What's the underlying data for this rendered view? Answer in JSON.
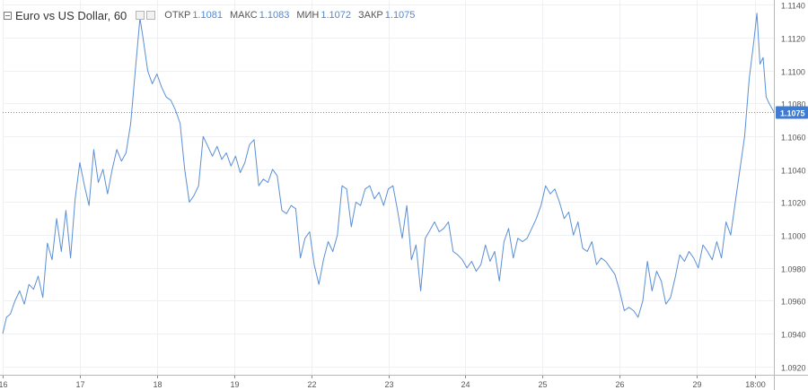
{
  "legend": {
    "title": "Euro vs US Dollar, 60",
    "open_label": "ОТКР",
    "open_value": "1.1081",
    "high_label": "МАКС",
    "high_value": "1.1083",
    "low_label": "МИН",
    "low_value": "1.1072",
    "close_label": "ЗАКР",
    "close_value": "1.1075"
  },
  "colors": {
    "line": "#5b8fd6",
    "last_badge": "#3f7bd1",
    "grid": "#eef0f3",
    "axis_text": "#555555"
  },
  "chart_data": {
    "type": "line",
    "title": "Euro vs US Dollar, 60",
    "xlabel": "",
    "ylabel": "",
    "ylim": [
      1.0915,
      1.1143
    ],
    "xlim": [
      0,
      100
    ],
    "grid": true,
    "y_ticks": [
      "1.0920",
      "1.0940",
      "1.0960",
      "1.0980",
      "1.1000",
      "1.1020",
      "1.1040",
      "1.1060",
      "1.1080",
      "1.1100",
      "1.1120",
      "1.1140"
    ],
    "x_ticks": [
      {
        "pos": 0,
        "label": "16"
      },
      {
        "pos": 10,
        "label": "17"
      },
      {
        "pos": 20,
        "label": "18"
      },
      {
        "pos": 30,
        "label": "19"
      },
      {
        "pos": 40,
        "label": "22"
      },
      {
        "pos": 50,
        "label": "23"
      },
      {
        "pos": 60,
        "label": "24"
      },
      {
        "pos": 70,
        "label": "25"
      },
      {
        "pos": 80,
        "label": "26"
      },
      {
        "pos": 90,
        "label": "29"
      },
      {
        "pos": 97.5,
        "label": "18:00"
      }
    ],
    "last_value": 1.1075,
    "last_label": "1.1075",
    "series": [
      {
        "x": [
          0,
          0.5,
          1,
          1.6,
          2.2,
          2.8,
          3.4,
          4.0,
          4.6,
          5.2,
          5.8,
          6.4,
          7.0,
          7.6,
          8.2,
          8.8,
          9.4,
          10.0,
          10.6,
          11.2,
          11.8,
          12.4,
          13.0,
          13.6,
          14.2,
          14.8,
          15.4,
          16.0,
          16.6,
          17.2,
          17.8,
          18.2,
          18.8,
          19.4,
          20.0,
          20.6,
          21.2,
          21.8,
          22.4,
          23.0,
          23.6,
          24.2,
          24.8,
          25.4,
          26.0,
          26.6,
          27.2,
          27.8,
          28.4,
          29.0,
          29.6,
          30.2,
          30.8,
          31.4,
          32.0,
          32.6,
          33.2,
          33.8,
          34.4,
          35.0,
          35.6,
          36.2,
          36.8,
          37.4,
          38.0,
          38.6,
          39.2,
          39.8,
          40.4,
          41.0,
          41.6,
          42.2,
          42.8,
          43.4,
          44.0,
          44.6,
          45.2,
          45.8,
          46.4,
          47.0,
          47.6,
          48.2,
          48.8,
          49.4,
          50.0,
          50.6,
          51.2,
          51.8,
          52.4,
          53.0,
          53.6,
          54.2,
          54.8,
          55.4,
          56.0,
          56.6,
          57.2,
          57.8,
          58.4,
          59.0,
          59.6,
          60.2,
          60.8,
          61.4,
          62.0,
          62.6,
          63.2,
          63.8,
          64.4,
          65.0,
          65.6,
          66.2,
          66.8,
          67.4,
          68.0,
          68.6,
          69.2,
          69.8,
          70.4,
          71.0,
          71.6,
          72.2,
          72.8,
          73.4,
          74.0,
          74.6,
          75.2,
          75.8,
          76.4,
          77.0,
          77.6,
          78.2,
          78.8,
          79.4,
          80.0,
          80.6,
          81.2,
          81.8,
          82.4,
          83.0,
          83.6,
          84.2,
          84.8,
          85.4,
          86.0,
          86.6,
          87.2,
          87.8,
          88.4,
          89.0,
          89.6,
          90.2,
          90.8,
          91.4,
          92.0,
          92.6,
          93.2,
          93.8,
          94.4,
          95.0,
          95.6,
          96.2,
          96.8,
          97.4,
          97.8,
          98.2,
          98.6,
          99.0,
          99.4,
          100.0
        ],
        "y": [
          1.094,
          1.095,
          1.0952,
          1.096,
          1.0966,
          1.0958,
          1.097,
          1.0967,
          1.0975,
          1.0962,
          1.0995,
          1.0985,
          1.101,
          1.099,
          1.1015,
          1.0986,
          1.1022,
          1.1044,
          1.103,
          1.1018,
          1.1052,
          1.1032,
          1.104,
          1.1025,
          1.104,
          1.1052,
          1.1045,
          1.105,
          1.1068,
          1.11,
          1.1132,
          1.112,
          1.11,
          1.1092,
          1.1098,
          1.109,
          1.1084,
          1.1082,
          1.1076,
          1.1068,
          1.104,
          1.102,
          1.1024,
          1.103,
          1.106,
          1.1054,
          1.1048,
          1.1054,
          1.1046,
          1.105,
          1.1042,
          1.1048,
          1.1038,
          1.1044,
          1.1055,
          1.1058,
          1.103,
          1.1034,
          1.1032,
          1.104,
          1.1036,
          1.1015,
          1.1013,
          1.1018,
          1.1016,
          1.0986,
          1.0998,
          1.1002,
          1.0982,
          1.097,
          1.0985,
          1.0996,
          1.099,
          1.1,
          1.103,
          1.1028,
          1.1005,
          1.102,
          1.1018,
          1.1028,
          1.103,
          1.1022,
          1.1026,
          1.1018,
          1.1028,
          1.103,
          1.1015,
          1.0998,
          1.1018,
          1.0985,
          1.0994,
          1.0966,
          1.0998,
          1.1003,
          1.1008,
          1.1002,
          1.1004,
          1.1008,
          1.099,
          1.0988,
          1.0985,
          1.098,
          1.0984,
          1.0978,
          1.0982,
          1.0994,
          1.0984,
          1.099,
          1.0972,
          1.0996,
          1.1004,
          1.0986,
          1.0998,
          1.0996,
          1.0998,
          1.1004,
          1.101,
          1.1018,
          1.103,
          1.1025,
          1.1028,
          1.102,
          1.101,
          1.1014,
          1.1,
          1.1008,
          1.0992,
          1.099,
          1.0996,
          1.0982,
          1.0986,
          1.0984,
          1.098,
          1.0976,
          1.0966,
          1.0954,
          1.0956,
          1.0954,
          1.095,
          1.096,
          1.0984,
          1.0966,
          1.0978,
          1.0972,
          1.0958,
          1.0962,
          1.0974,
          1.0988,
          1.0984,
          1.099,
          1.0986,
          1.098,
          1.0994,
          1.099,
          1.0985,
          1.0996,
          1.0986,
          1.1008,
          1.1,
          1.102,
          1.104,
          1.106,
          1.1095,
          1.1118,
          1.1135,
          1.1104,
          1.1108,
          1.1084,
          1.108,
          1.1075
        ]
      }
    ]
  }
}
